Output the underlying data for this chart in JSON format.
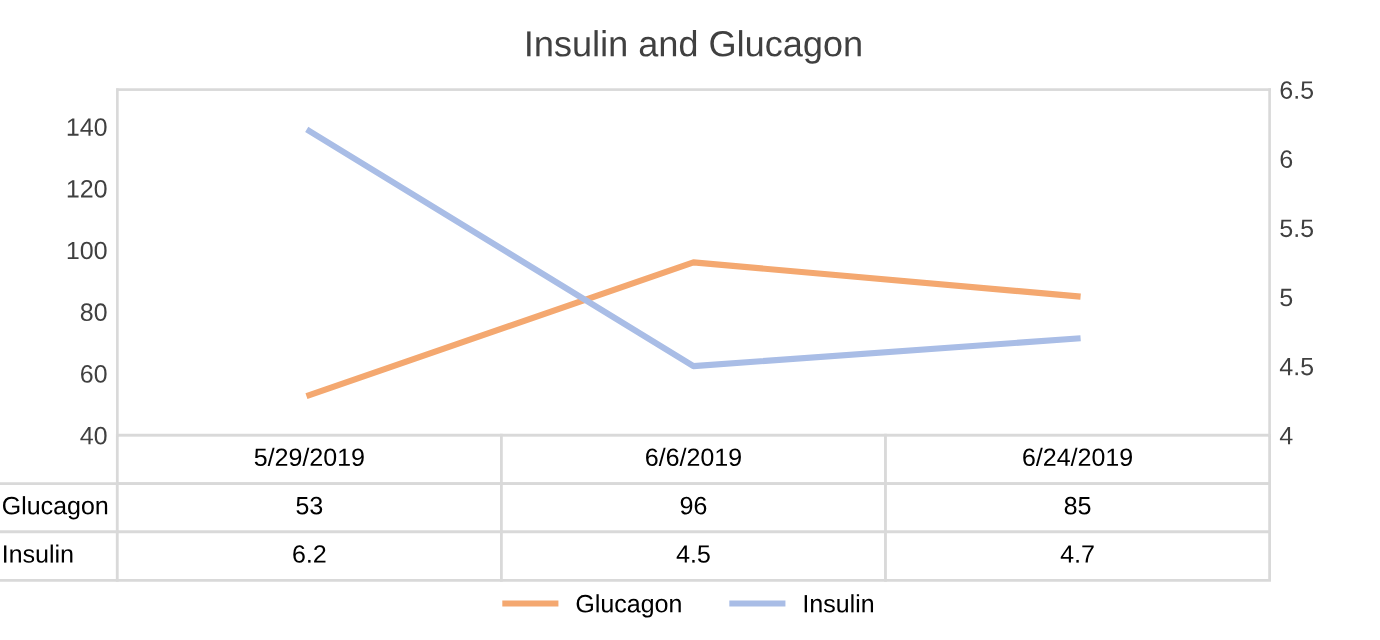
{
  "chart_data": {
    "type": "line",
    "title": "Insulin and Glucagon",
    "categories": [
      "5/29/2019",
      "6/6/2019",
      "6/24/2019"
    ],
    "series": [
      {
        "name": "Glucagon",
        "color": "#f4a870",
        "values": [
          53,
          96,
          85
        ]
      },
      {
        "name": "Insulin",
        "color": "#a9bde6",
        "values": [
          6.2,
          4.5,
          4.7
        ],
        "axis": "y2"
      }
    ],
    "ylim": [
      40,
      152
    ],
    "yticks": [
      40,
      60,
      80,
      100,
      120,
      140
    ],
    "y2lim": [
      4,
      6.5
    ],
    "y2ticks": [
      4,
      4.5,
      5,
      5.5,
      6,
      6.5
    ],
    "data_labels": true,
    "grid": false,
    "legend": "bottom",
    "marker": "none",
    "line_style": "solid"
  }
}
